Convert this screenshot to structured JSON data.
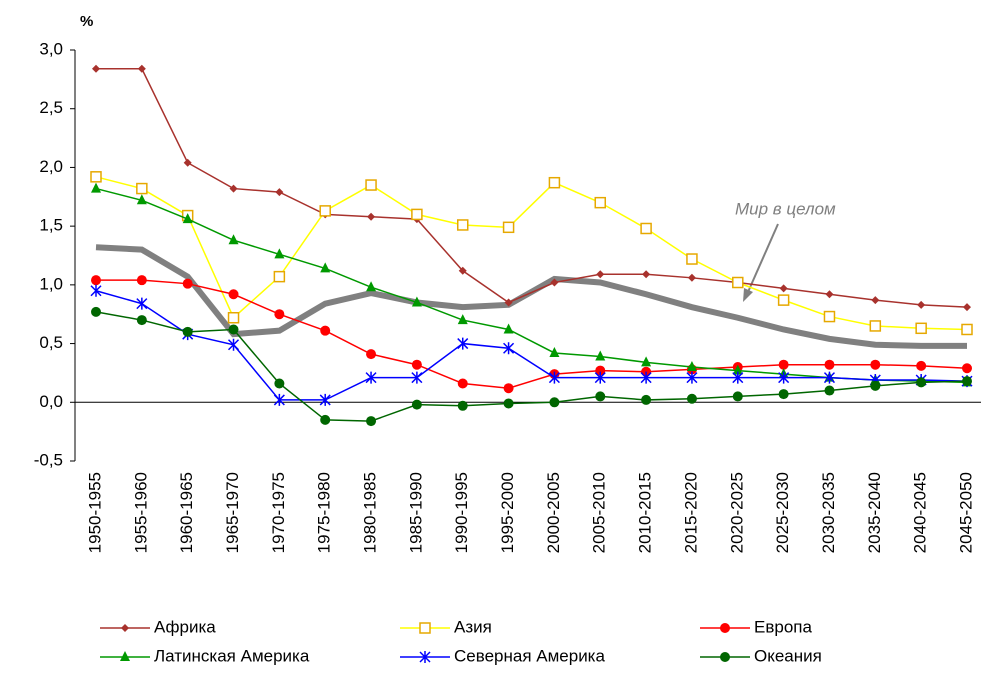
{
  "chart_data": {
    "type": "line",
    "y_label": "%",
    "categories": [
      "1950-1955",
      "1955-1960",
      "1960-1965",
      "1965-1970",
      "1970-1975",
      "1975-1980",
      "1980-1985",
      "1985-1990",
      "1990-1995",
      "1995-2000",
      "2000-2005",
      "2005-2010",
      "2010-2015",
      "2015-2020",
      "2020-2025",
      "2025-2030",
      "2030-2035",
      "2035-2040",
      "2040-2045",
      "2045-2050"
    ],
    "ylim": [
      -0.5,
      3.0
    ],
    "yticks": [
      {
        "value": -0.5,
        "label": "-0,5"
      },
      {
        "value": 0,
        "label": "0,0"
      },
      {
        "value": 0.5,
        "label": "0,5"
      },
      {
        "value": 1,
        "label": "1,0"
      },
      {
        "value": 1.5,
        "label": "1,5"
      },
      {
        "value": 2,
        "label": "2,0"
      },
      {
        "value": 2.5,
        "label": "2,5"
      },
      {
        "value": 3,
        "label": "3,0"
      }
    ],
    "series": [
      {
        "name": "Африка",
        "color": "#a8322d",
        "marker": "diamond",
        "values": [
          2.84,
          2.84,
          2.04,
          1.82,
          1.79,
          1.6,
          1.58,
          1.56,
          1.12,
          0.85,
          1.02,
          1.09,
          1.09,
          1.06,
          1.02,
          0.97,
          0.92,
          0.87,
          0.83,
          0.81
        ]
      },
      {
        "name": "Азия",
        "color": "#ffff00",
        "marker": "square",
        "values": [
          1.92,
          1.82,
          1.59,
          0.72,
          1.07,
          1.63,
          1.85,
          1.6,
          1.51,
          1.49,
          1.87,
          1.7,
          1.48,
          1.22,
          1.02,
          0.87,
          0.73,
          0.65,
          0.63,
          0.62
        ]
      },
      {
        "name": "Европа",
        "color": "#ff0000",
        "marker": "circle",
        "values": [
          1.04,
          1.04,
          1.01,
          0.92,
          0.75,
          0.61,
          0.41,
          0.32,
          0.16,
          0.12,
          0.24,
          0.27,
          0.26,
          0.28,
          0.3,
          0.32,
          0.32,
          0.32,
          0.31,
          0.29
        ]
      },
      {
        "name": "Латинская Америка",
        "color": "#009900",
        "marker": "triangle",
        "values": [
          1.82,
          1.72,
          1.56,
          1.38,
          1.26,
          1.14,
          0.98,
          0.85,
          0.7,
          0.62,
          0.42,
          0.39,
          0.34,
          0.3,
          0.27,
          0.24,
          0.21,
          0.19,
          0.18,
          0.17
        ]
      },
      {
        "name": "Северная Америка",
        "color": "#0000ff",
        "marker": "star",
        "values": [
          0.95,
          0.84,
          0.58,
          0.49,
          0.02,
          0.02,
          0.21,
          0.21,
          0.5,
          0.46,
          0.21,
          0.21,
          0.21,
          0.21,
          0.21,
          0.21,
          0.21,
          0.19,
          0.19,
          0.18
        ]
      },
      {
        "name": "Океания",
        "color": "#006600",
        "marker": "circle",
        "values": [
          0.77,
          0.7,
          0.6,
          0.62,
          0.16,
          -0.15,
          -0.16,
          -0.02,
          -0.03,
          -0.01,
          0.0,
          0.05,
          0.02,
          0.03,
          0.05,
          0.07,
          0.1,
          0.14,
          0.17,
          0.18
        ]
      }
    ],
    "annotated_series": {
      "name": "Мир в целом",
      "color": "#808080",
      "values": [
        1.32,
        1.3,
        1.07,
        0.58,
        0.61,
        0.84,
        0.93,
        0.85,
        0.81,
        0.83,
        1.05,
        1.02,
        0.92,
        0.81,
        0.72,
        0.62,
        0.54,
        0.49,
        0.48,
        0.48
      ]
    }
  }
}
